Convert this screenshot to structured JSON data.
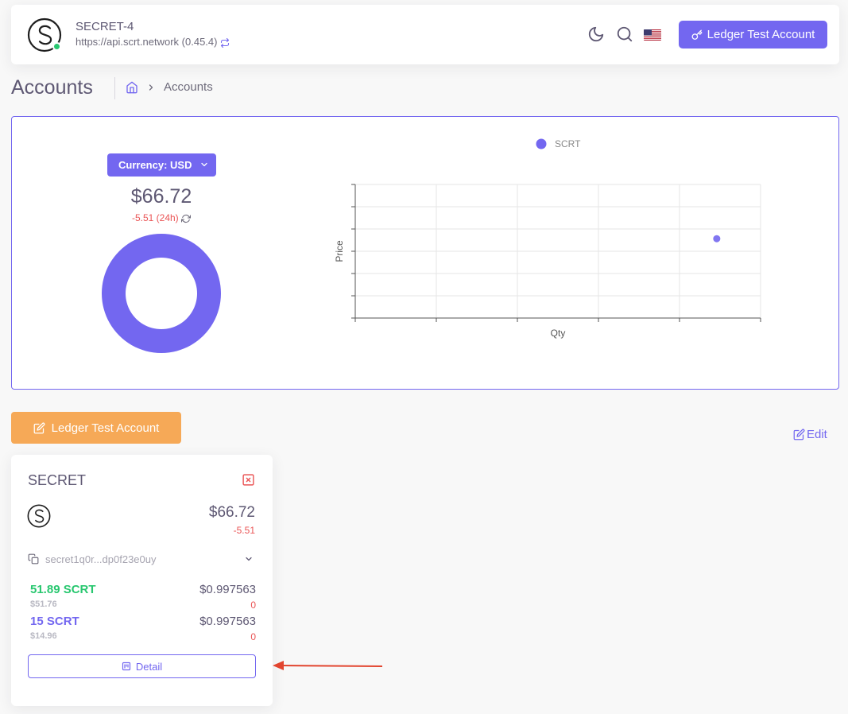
{
  "navbar": {
    "chain_name": "SECRET-4",
    "chain_url": "https://api.scrt.network (0.45.4)",
    "account_button_label": "Ledger Test Account"
  },
  "page": {
    "title": "Accounts",
    "breadcrumb": [
      "Accounts"
    ]
  },
  "portfolio": {
    "currency_label": "Currency: USD",
    "total_value": "$66.72",
    "change_text": "-5.51 (24h)"
  },
  "chart_data": [
    {
      "type": "pie",
      "subtype": "doughnut",
      "labels": [
        "SCRT"
      ],
      "values": [
        66.72
      ],
      "colors": [
        "#7367f0"
      ]
    },
    {
      "type": "scatter",
      "legend": [
        "SCRT"
      ],
      "legend_position": "top",
      "xlabel": "Qty",
      "ylabel": "Price",
      "grid": true,
      "series": [
        {
          "name": "SCRT",
          "color": "#7367f0",
          "points": [
            {
              "x": 66.89,
              "y": 0.997563
            }
          ]
        }
      ],
      "xlim": [
        0,
        75
      ],
      "ylim": [
        0.994,
        1.0
      ]
    }
  ],
  "account": {
    "button_label": "Ledger Test Account",
    "edit_label": "Edit"
  },
  "wallet": {
    "title": "SECRET",
    "value": "$66.72",
    "change": "-5.51",
    "address": "secret1q0r...dp0f23e0uy",
    "assets": [
      {
        "amount": "51.89 SCRT",
        "usd": "$51.76",
        "price": "$0.997563",
        "change": "0",
        "color": "#28c76f"
      },
      {
        "amount": "15 SCRT",
        "usd": "$14.96",
        "price": "$0.997563",
        "change": "0",
        "color": "#7367f0"
      }
    ],
    "detail_label": "Detail"
  },
  "colors": {
    "primary": "#7367f0",
    "success": "#28c76f",
    "danger": "#ea5455",
    "warning": "#f6a957"
  }
}
